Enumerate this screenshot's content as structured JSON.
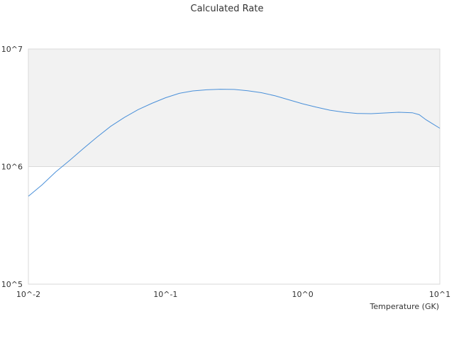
{
  "chart_data": {
    "type": "line",
    "title": "Calculated Rate",
    "xlabel": "Temperature (GK)",
    "ylabel": "",
    "x_scale": "log",
    "y_scale": "log",
    "xlim": [
      0.01,
      10
    ],
    "ylim": [
      100000,
      10000000
    ],
    "x_ticks": [
      "10^-2",
      "10^-1",
      "10^0",
      "10^1"
    ],
    "y_ticks": [
      "10^5",
      "10^6",
      "10^7"
    ],
    "grid": true,
    "shaded_band": {
      "y_from": 1000000,
      "y_to": 10000000,
      "color": "#f2f2f2"
    },
    "series": [
      {
        "color": "#4a90d9",
        "points": [
          [
            0.01,
            560000
          ],
          [
            0.0126,
            700000
          ],
          [
            0.0158,
            900000
          ],
          [
            0.02,
            1130000
          ],
          [
            0.0251,
            1420000
          ],
          [
            0.0316,
            1780000
          ],
          [
            0.0398,
            2200000
          ],
          [
            0.0501,
            2620000
          ],
          [
            0.0631,
            3050000
          ],
          [
            0.0794,
            3450000
          ],
          [
            0.1,
            3850000
          ],
          [
            0.126,
            4200000
          ],
          [
            0.158,
            4400000
          ],
          [
            0.2,
            4500000
          ],
          [
            0.251,
            4550000
          ],
          [
            0.316,
            4530000
          ],
          [
            0.398,
            4420000
          ],
          [
            0.501,
            4250000
          ],
          [
            0.631,
            4000000
          ],
          [
            0.794,
            3700000
          ],
          [
            1.0,
            3420000
          ],
          [
            1.26,
            3200000
          ],
          [
            1.58,
            3020000
          ],
          [
            2.0,
            2900000
          ],
          [
            2.51,
            2830000
          ],
          [
            3.16,
            2820000
          ],
          [
            3.98,
            2860000
          ],
          [
            5.01,
            2900000
          ],
          [
            6.31,
            2870000
          ],
          [
            7.08,
            2760000
          ],
          [
            7.94,
            2500000
          ],
          [
            8.91,
            2300000
          ],
          [
            10.0,
            2120000
          ]
        ]
      }
    ]
  }
}
